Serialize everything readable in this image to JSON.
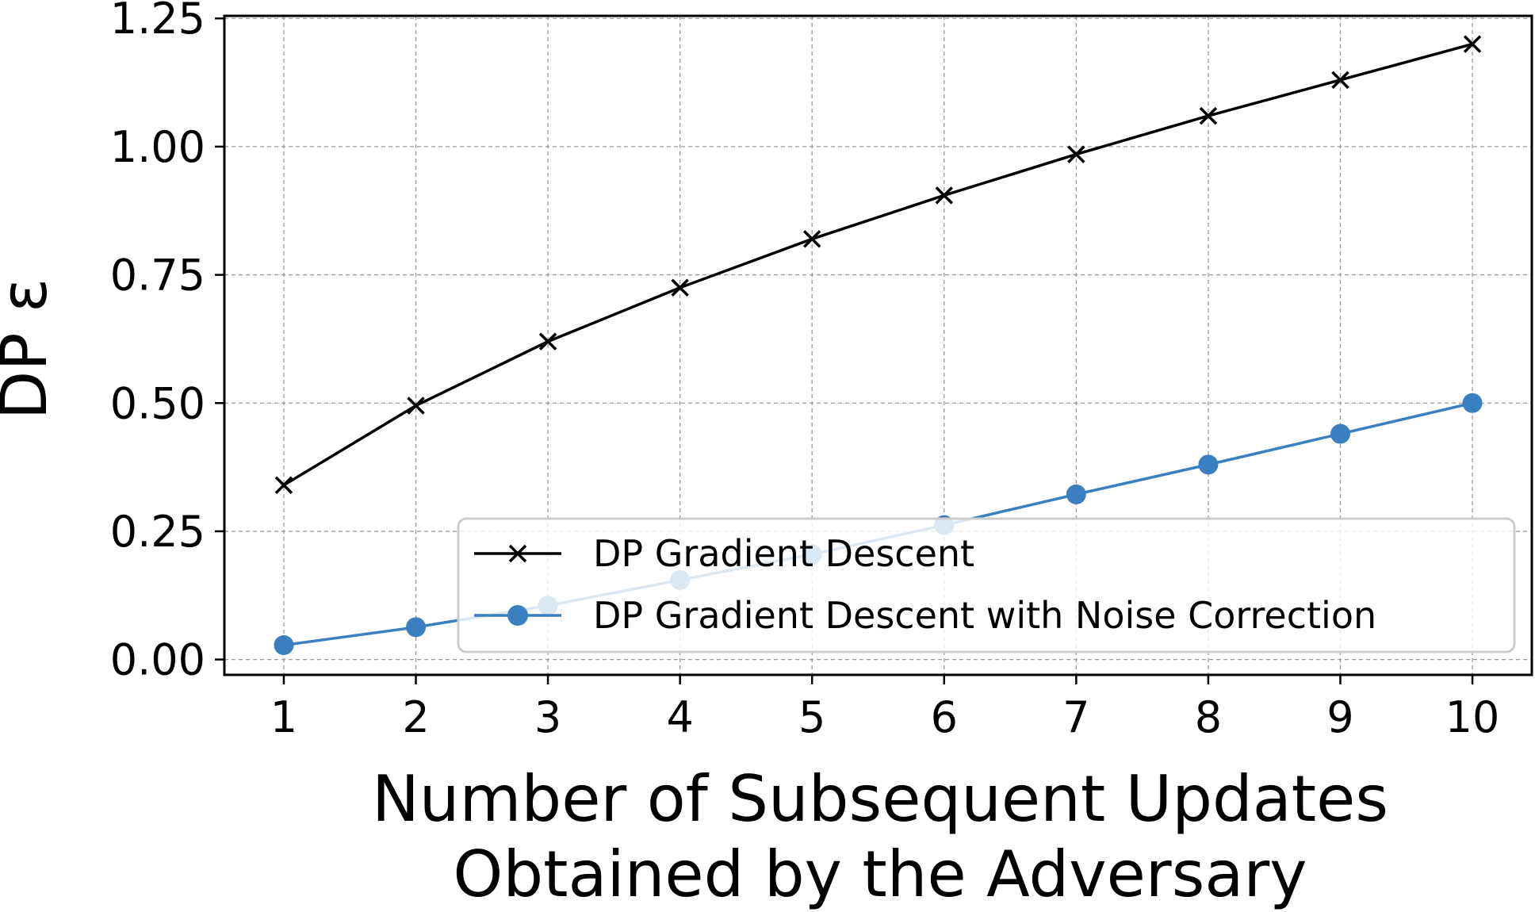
{
  "chart_data": {
    "type": "line",
    "xlabel": [
      "Number of Subsequent Updates",
      "Obtained by the Adversary"
    ],
    "ylabel": "DP ε",
    "x": [
      1,
      2,
      3,
      4,
      5,
      6,
      7,
      8,
      9,
      10
    ],
    "xticks": [
      "1",
      "2",
      "3",
      "4",
      "5",
      "6",
      "7",
      "8",
      "9",
      "10"
    ],
    "yticks": [
      "0.00",
      "0.25",
      "0.50",
      "0.75",
      "1.00",
      "1.25"
    ],
    "xlim": [
      0.55,
      10.45
    ],
    "ylim": [
      -0.03,
      1.255
    ],
    "grid": true,
    "legend_position": "lower-right",
    "series": [
      {
        "name": "DP Gradient Descent",
        "color": "#000000",
        "marker": "x",
        "values": [
          0.34,
          0.495,
          0.62,
          0.725,
          0.82,
          0.905,
          0.985,
          1.06,
          1.13,
          1.2
        ]
      },
      {
        "name": "DP Gradient Descent with Noise Correction",
        "color": "#3a7fbf",
        "marker": "circle",
        "values": [
          0.028,
          0.063,
          0.105,
          0.155,
          0.205,
          0.262,
          0.322,
          0.38,
          0.44,
          0.5
        ]
      }
    ]
  }
}
